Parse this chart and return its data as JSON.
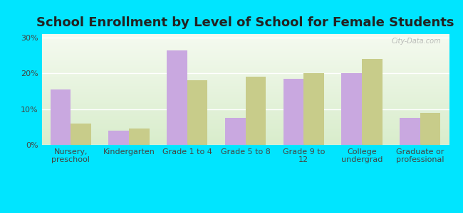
{
  "title": "School Enrollment by Level of School for Female Students",
  "categories": [
    "Nursery,\npreschool",
    "Kindergarten",
    "Grade 1 to 4",
    "Grade 5 to 8",
    "Grade 9 to\n12",
    "College\nundergrad",
    "Graduate or\nprofessional"
  ],
  "mahopac": [
    15.5,
    4.0,
    26.5,
    7.5,
    18.5,
    20.0,
    7.5
  ],
  "new_york": [
    6.0,
    4.5,
    18.0,
    19.0,
    20.0,
    24.0,
    9.0
  ],
  "mahopac_color": "#c9a8e0",
  "new_york_color": "#c8cc8a",
  "background_outer": "#00e5ff",
  "background_plot_top": "#f5f8f0",
  "background_plot_bottom": "#d8edcc",
  "grid_color": "#ffffff",
  "yticks": [
    0,
    10,
    20,
    30
  ],
  "ylim": [
    0,
    31
  ],
  "title_fontsize": 13,
  "tick_fontsize": 8,
  "legend_fontsize": 9,
  "bar_width": 0.35
}
